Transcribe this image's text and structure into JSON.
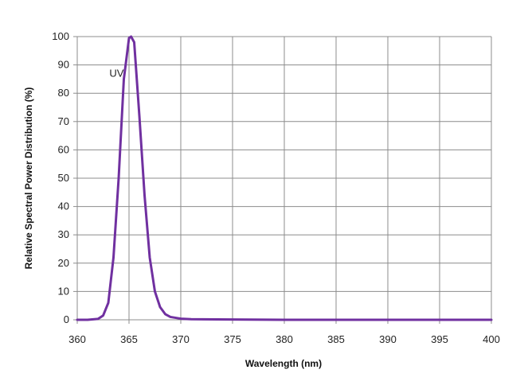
{
  "chart_data": {
    "type": "line",
    "title": "",
    "xlabel": "Wavelength (nm)",
    "ylabel": "Relative  Spectral Power Distribution (%)",
    "xlim": [
      360,
      400
    ],
    "ylim": [
      0,
      100
    ],
    "x_ticks": [
      360,
      365,
      370,
      375,
      380,
      385,
      390,
      395,
      400
    ],
    "y_ticks": [
      0,
      10,
      20,
      30,
      40,
      50,
      60,
      70,
      80,
      90,
      100
    ],
    "x_tick_labels": [
      "360",
      "365",
      "370",
      "375",
      "380",
      "385",
      "390",
      "395",
      "400"
    ],
    "y_tick_labels": [
      "0",
      "10",
      "20",
      "30",
      "40",
      "50",
      "60",
      "70",
      "80",
      "90",
      "100"
    ],
    "grid": true,
    "legend": "none",
    "annotations": [
      {
        "text": "UV",
        "x": 363.8,
        "y": 87
      }
    ],
    "series": [
      {
        "color": "#7030a0",
        "x": [
          360,
          361,
          362,
          362.5,
          363,
          363.5,
          364,
          364.5,
          365,
          365.2,
          365.5,
          366,
          366.5,
          367,
          367.5,
          368,
          368.5,
          369,
          370,
          371,
          375,
          380,
          385,
          390,
          395,
          400
        ],
        "values": [
          0,
          0,
          0.3,
          1.5,
          6,
          22,
          50,
          85,
          99.5,
          100,
          98,
          72,
          44,
          22,
          10,
          4.5,
          2,
          1,
          0.4,
          0.2,
          0.1,
          0,
          0,
          0,
          0,
          0
        ]
      }
    ]
  }
}
